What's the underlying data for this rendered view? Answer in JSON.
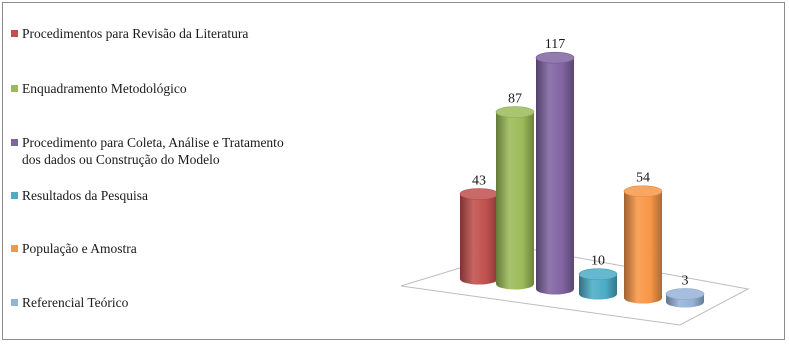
{
  "chart_data": {
    "type": "bar",
    "categories": [
      "Procedimentos para Revisão da Literatura",
      "Enquadramento Metodológico",
      "Procedimento para Coleta, Análise e Tratamento\ndos dados ou Construção do Modelo",
      "Resultados da Pesquisa",
      "População e Amostra",
      "Referencial Teórico"
    ],
    "values": [
      43,
      87,
      117,
      10,
      54,
      3
    ],
    "legend_position": "left",
    "grid": false,
    "style": "3d-cylinder",
    "colors": [
      "#c0504d",
      "#9bbb59",
      "#8064a2",
      "#4bacc6",
      "#f79646",
      "#95b3d7"
    ]
  }
}
